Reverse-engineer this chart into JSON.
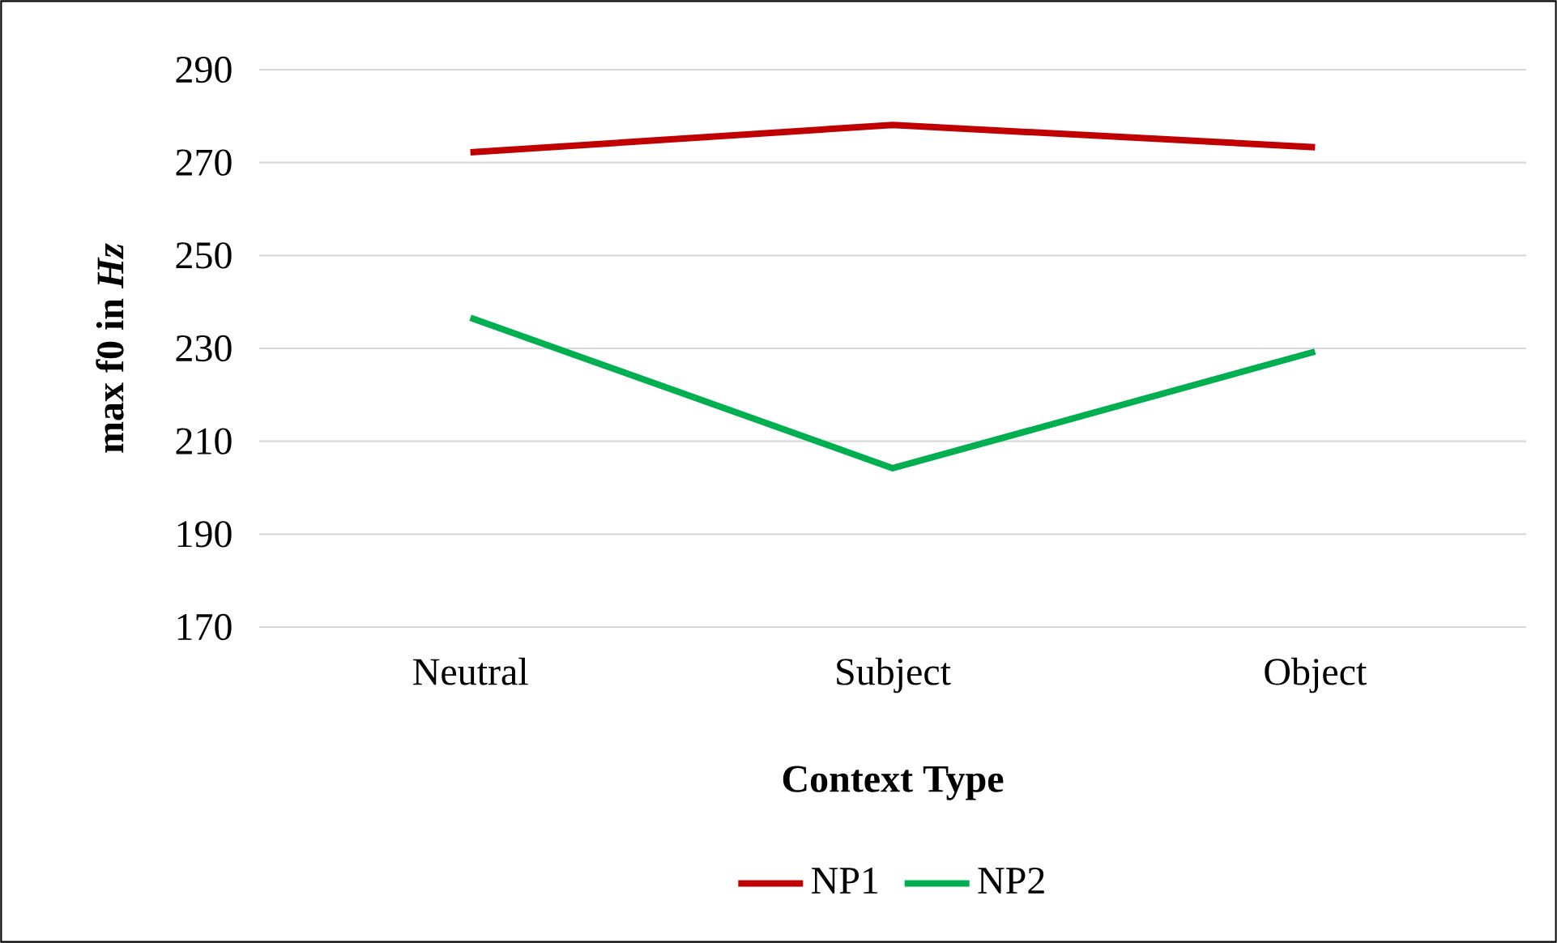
{
  "chart_data": {
    "type": "line",
    "xlabel": "Context Type",
    "ylabel": "max f0 in *Hz*",
    "categories": [
      "Neutral",
      "Subject",
      "Object"
    ],
    "series": [
      {
        "name": "NP1",
        "color": "#c00000",
        "values": [
          272.2,
          278.1,
          273.3
        ]
      },
      {
        "name": "NP2",
        "color": "#00b050",
        "values": [
          236.6,
          204.2,
          229.3
        ]
      }
    ],
    "ylim": [
      170,
      290
    ],
    "yticks": [
      170,
      190,
      210,
      230,
      250,
      270,
      290
    ],
    "grid": "y",
    "legend": "bottom"
  }
}
